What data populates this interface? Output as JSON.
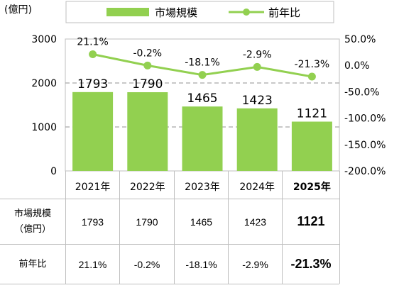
{
  "chart_data": {
    "type": "bar",
    "y_unit": "(億円)",
    "legend": {
      "bar_label": "市場規模",
      "line_label": "前年比",
      "position": "top"
    },
    "categories": [
      "2021年",
      "2022年",
      "2023年",
      "2024年",
      "2025年"
    ],
    "series": [
      {
        "name": "市場規模",
        "type": "bar",
        "axis": "left",
        "color": "#92d050",
        "values": [
          1793,
          1790,
          1465,
          1423,
          1121
        ],
        "labels": [
          "1793",
          "1790",
          "1465",
          "1423",
          "1121"
        ]
      },
      {
        "name": "前年比",
        "type": "line",
        "axis": "right",
        "color": "#92d050",
        "values": [
          21.1,
          -0.2,
          -18.1,
          -2.9,
          -21.3
        ],
        "labels": [
          "21.1%",
          "-0.2%",
          "-18.1%",
          "-2.9%",
          "-21.3%"
        ]
      }
    ],
    "y_left": {
      "min": 0,
      "max": 3000,
      "ticks": [
        "0",
        "1000",
        "2000",
        "3000"
      ]
    },
    "y_right": {
      "min": -200,
      "max": 50,
      "ticks": [
        "50.0%",
        "0.0%",
        "-50.0%",
        "-100.0%",
        "-150.0%",
        "-200.0%"
      ]
    },
    "grid": "dashed horizontal at 1000 and 2000",
    "highlight_category": "2025年"
  },
  "table": {
    "row1_header_line1": "市場規模",
    "row1_header_line2": "（億円）",
    "row2_header": "前年比",
    "row1_values": [
      "1793",
      "1790",
      "1465",
      "1423",
      "1121"
    ],
    "row2_values": [
      "21.1%",
      "-0.2%",
      "-18.1%",
      "-2.9%",
      "-21.3%"
    ]
  }
}
